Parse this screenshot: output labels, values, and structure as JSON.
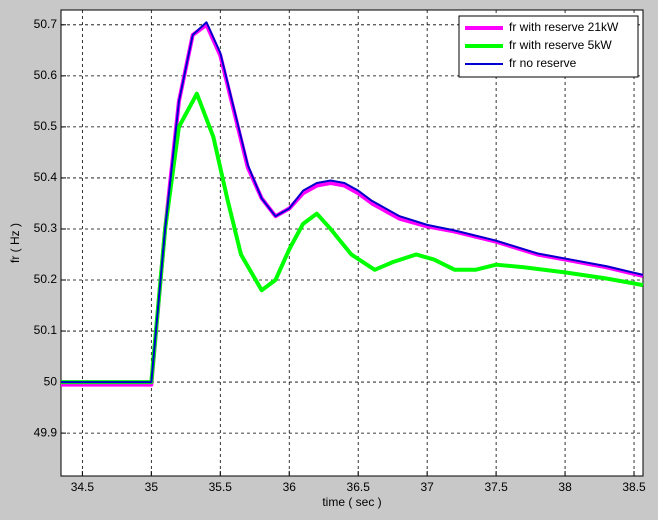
{
  "chart_data": {
    "type": "line",
    "xlabel": "time ( sec )",
    "ylabel": "fr ( Hz )",
    "xlim": [
      34.345,
      38.565
    ],
    "ylim": [
      49.816,
      50.729
    ],
    "xticks": [
      34.5,
      35,
      35.5,
      36,
      36.5,
      37,
      37.5,
      38,
      38.5
    ],
    "yticks": [
      49.9,
      50,
      50.1,
      50.2,
      50.3,
      50.4,
      50.5,
      50.6,
      50.7
    ],
    "grid": true,
    "legend": "upper right",
    "series": [
      {
        "name": "fr with reserve 21kW",
        "color": "#ff00ff",
        "x": [
          34.345,
          35,
          35.1,
          35.2,
          35.3,
          35.4,
          35.5,
          35.6,
          35.7,
          35.8,
          35.9,
          36,
          36.1,
          36.2,
          36.3,
          36.4,
          36.5,
          36.6,
          36.8,
          37,
          37.2,
          37.5,
          37.8,
          38,
          38.3,
          38.565
        ],
        "values": [
          49.995,
          49.995,
          50.3,
          50.55,
          50.68,
          50.7,
          50.64,
          50.53,
          50.42,
          50.36,
          50.325,
          50.34,
          50.37,
          50.385,
          50.39,
          50.385,
          50.37,
          50.35,
          50.32,
          50.305,
          50.295,
          50.275,
          50.25,
          50.24,
          50.225,
          50.208
        ]
      },
      {
        "name": "fr with reserve 5kW",
        "color": "#00ff00",
        "x": [
          34.345,
          35,
          35.1,
          35.2,
          35.33,
          35.45,
          35.55,
          35.65,
          35.8,
          35.9,
          36,
          36.1,
          36.2,
          36.3,
          36.45,
          36.62,
          36.75,
          36.92,
          37.05,
          37.2,
          37.35,
          37.5,
          37.7,
          38,
          38.3,
          38.565
        ],
        "values": [
          50,
          50,
          50.3,
          50.5,
          50.565,
          50.48,
          50.36,
          50.25,
          50.18,
          50.2,
          50.26,
          50.31,
          50.33,
          50.3,
          50.25,
          50.22,
          50.235,
          50.25,
          50.24,
          50.22,
          50.22,
          50.23,
          50.225,
          50.215,
          50.203,
          50.19
        ]
      },
      {
        "name": "fr no reserve",
        "color": "#0000cc",
        "x": [
          34.345,
          35,
          35.1,
          35.2,
          35.3,
          35.4,
          35.5,
          35.6,
          35.7,
          35.8,
          35.9,
          36,
          36.1,
          36.2,
          36.3,
          36.4,
          36.5,
          36.6,
          36.8,
          37,
          37.2,
          37.5,
          37.8,
          38,
          38.3,
          38.565
        ],
        "values": [
          50,
          50,
          50.3,
          50.55,
          50.68,
          50.705,
          50.645,
          50.535,
          50.425,
          50.36,
          50.325,
          50.34,
          50.375,
          50.39,
          50.395,
          50.39,
          50.375,
          50.355,
          50.325,
          50.308,
          50.297,
          50.277,
          50.252,
          50.242,
          50.227,
          50.21
        ]
      }
    ]
  }
}
